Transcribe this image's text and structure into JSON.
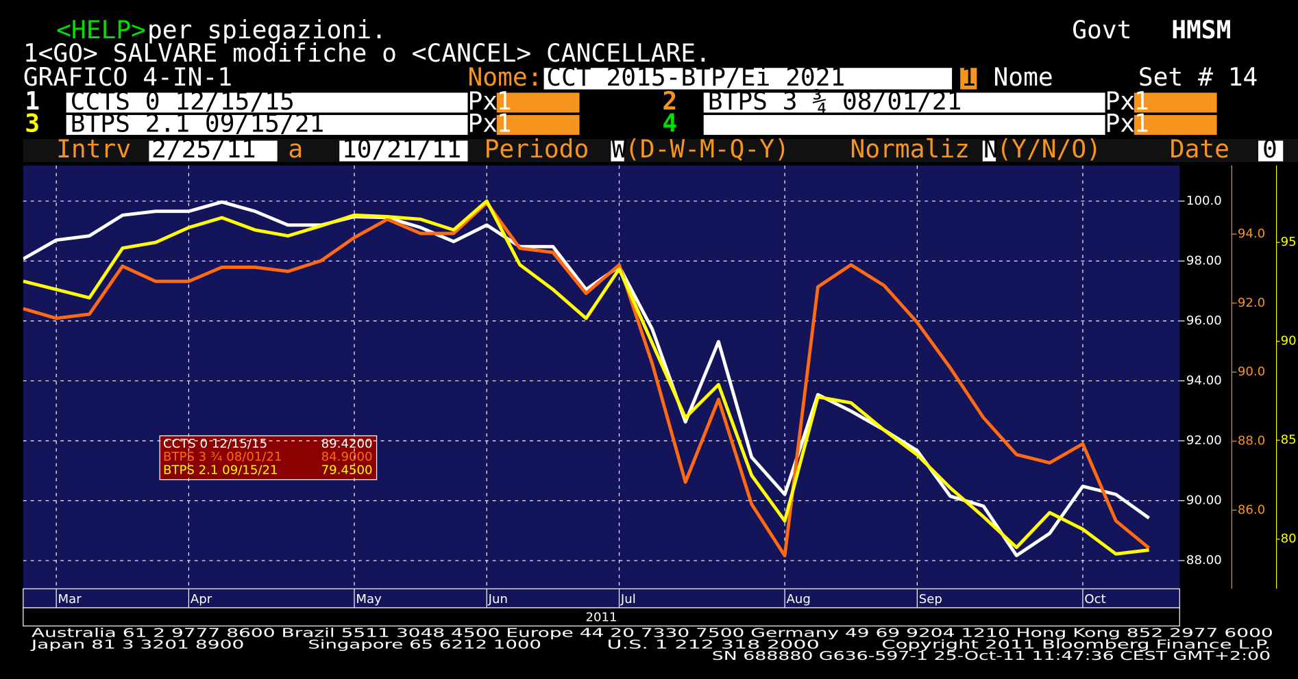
{
  "header": {
    "help_key": "<HELP>",
    "help_text": " per spiegazioni.",
    "instructions": "1<GO> SALVARE modifiche o <CANCEL> CANCELLARE.",
    "market": "Govt",
    "ticker": "HMSM",
    "screen": "GRAFICO 4-IN-1",
    "name_label": "Nome:",
    "name_value": "CCT 2015-BTP/Ei 2021",
    "name_index": "1",
    "name_field": "Nome",
    "set": "Set # 14"
  },
  "securities": [
    {
      "number": "1",
      "price_field": "Px",
      "multiplier": "1"
    },
    {
      "number": "2",
      "price_field": "Px",
      "multiplier": "1"
    },
    {
      "number": "3",
      "price_field": "Px",
      "multiplier": "1"
    },
    {
      "number": "4",
      "price_field": "Px",
      "multiplier": "1"
    }
  ],
  "controls": {
    "interval_label": "Intrv",
    "start": "2/25/11",
    "to": "a",
    "end": "10/21/11",
    "period_label": "Periodo",
    "period": "W",
    "period_options": "(D-W-M-Q-Y)",
    "normalize_label": "Normaliz",
    "normalize": "N",
    "normalize_options": "(Y/N/O)",
    "date_label": "Date",
    "date": "0"
  },
  "chart_data": {
    "type": "line",
    "x_label": "2011",
    "grid": true,
    "xlim": [
      0,
      34
    ],
    "xticks": [
      {
        "value": 1,
        "label": "Mar"
      },
      {
        "value": 5,
        "label": "Apr"
      },
      {
        "value": 10,
        "label": "May"
      },
      {
        "value": 14,
        "label": "Jun"
      },
      {
        "value": 18,
        "label": "Jul"
      },
      {
        "value": 23,
        "label": "Aug"
      },
      {
        "value": 27,
        "label": "Sep"
      },
      {
        "value": 32,
        "label": "Oct"
      }
    ],
    "ylim": [
      87.06,
      101.19
    ],
    "yticks": [
      {
        "value": 100,
        "label": "100.0"
      },
      {
        "value": 98,
        "label": "98.00"
      },
      {
        "value": 96,
        "label": "96.00"
      },
      {
        "value": 94,
        "label": "94.00"
      },
      {
        "value": 92,
        "label": "92.00"
      },
      {
        "value": 90,
        "label": "90.00"
      },
      {
        "value": 88,
        "label": "88.00"
      }
    ],
    "y2lim": [
      83.72,
      95.99
    ],
    "y2ticks": [
      {
        "value": 94,
        "label": "94.0"
      },
      {
        "value": 92,
        "label": "92.0"
      },
      {
        "value": 90,
        "label": "90.0"
      },
      {
        "value": 88,
        "label": "88.0"
      },
      {
        "value": 86,
        "label": "86.0"
      }
    ],
    "y3lim": [
      77.49,
      98.89
    ],
    "y3ticks": [
      95,
      90,
      85,
      80
    ],
    "legend_values": [
      "89.4200",
      "84.9000",
      "79.4500"
    ],
    "series": [
      {
        "name": "CCTS 0 12/15/15",
        "color": "#ffffff",
        "axis": "y",
        "values": [
          98.07,
          98.7,
          98.84,
          99.53,
          99.66,
          99.66,
          99.97,
          99.66,
          99.2,
          99.2,
          99.48,
          99.45,
          99.12,
          98.65,
          99.2,
          98.48,
          98.48,
          97.05,
          97.82,
          95.72,
          92.63,
          95.31,
          91.45,
          90.21,
          93.54,
          92.99,
          92.36,
          91.67,
          90.15,
          89.82,
          88.17,
          88.91,
          90.48,
          90.21,
          89.42
        ]
      },
      {
        "name": "BTPS 3 ¾ 08/01/21",
        "color": "#ff6a13",
        "axis": "y2",
        "values": [
          91.84,
          91.56,
          91.68,
          93.07,
          92.63,
          92.63,
          93.04,
          93.04,
          92.92,
          93.23,
          93.9,
          94.43,
          94.02,
          94.02,
          94.91,
          93.59,
          93.47,
          92.28,
          93.11,
          90.24,
          86.81,
          89.21,
          86.17,
          84.68,
          92.47,
          93.11,
          92.51,
          91.44,
          90.12,
          88.68,
          87.61,
          87.37,
          87.92,
          85.69,
          84.9
        ]
      },
      {
        "name": "BTPS 2.1 09/15/21",
        "color": "#ffff00",
        "axis": "y3",
        "values": [
          93.04,
          92.62,
          92.2,
          94.71,
          95.0,
          95.75,
          96.25,
          95.63,
          95.33,
          95.84,
          96.38,
          96.3,
          96.17,
          95.63,
          97.09,
          93.87,
          92.62,
          91.16,
          93.66,
          89.9,
          86.14,
          87.81,
          83.22,
          80.92,
          87.19,
          86.89,
          85.51,
          84.26,
          82.59,
          81.13,
          79.58,
          81.34,
          80.5,
          79.25,
          79.45
        ]
      }
    ]
  },
  "footer": {
    "line1": "Australia 61 2 9777 8600 Brazil 5511 3048 4500 Europe 44 20 7330 7500 Germany 49 69 9204 1210 Hong Kong 852 2977 6000",
    "japan": "Japan 81 3 3201 8900",
    "singapore": "Singapore 65 6212 1000",
    "us": "U.S. 1 212 318 2000",
    "copyright": "Copyright 2011 Bloomberg Finance L.P.",
    "sn": "SN 688880 G636-597-1 25-Oct-11 11:47:36 CEST GMT+2:00"
  }
}
